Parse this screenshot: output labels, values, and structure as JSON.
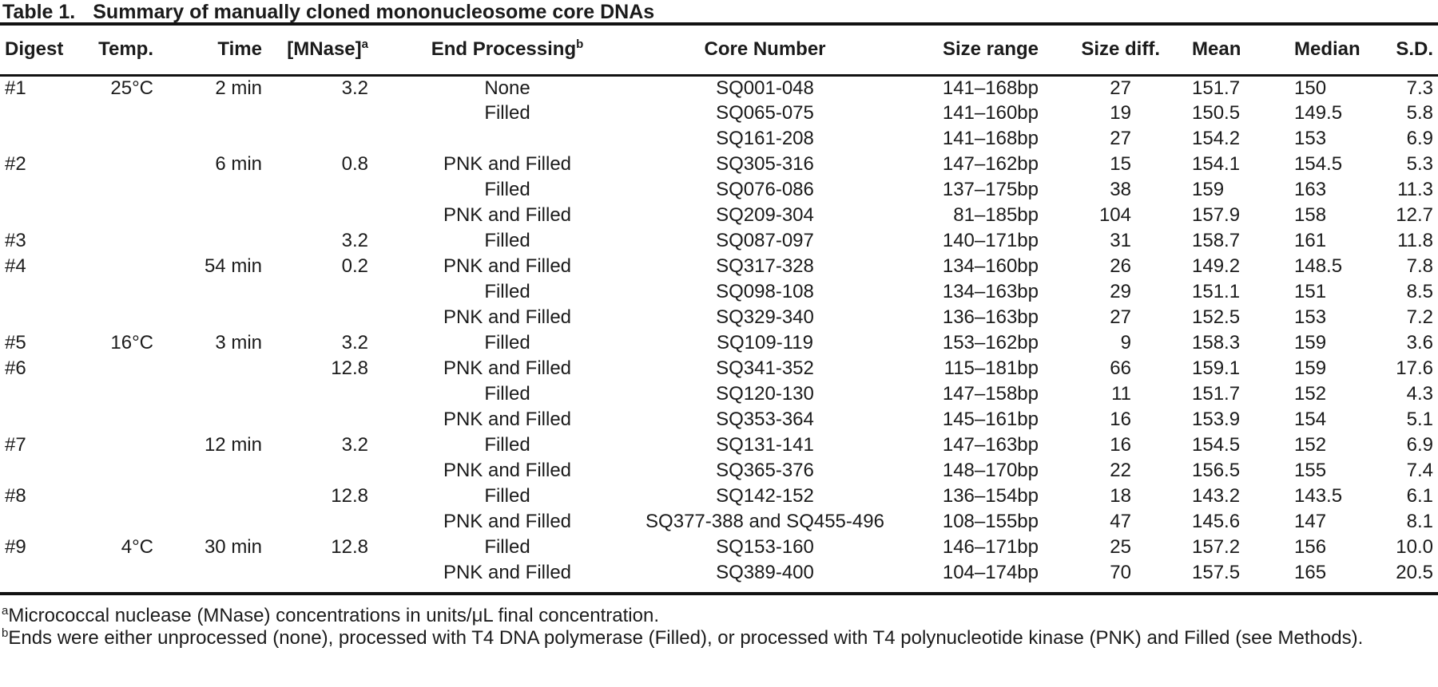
{
  "title": {
    "label": "Table 1.",
    "caption": "Summary of manually cloned mononucleosome core DNAs"
  },
  "table": {
    "columns": [
      {
        "label": "Digest"
      },
      {
        "label": "Temp."
      },
      {
        "label": "Time"
      },
      {
        "label": "[MNase]",
        "sup": "a"
      },
      {
        "label": "End Processing",
        "sup": "b"
      },
      {
        "label": "Core Number"
      },
      {
        "label": "Size range"
      },
      {
        "label": "Size diff."
      },
      {
        "label": "Mean"
      },
      {
        "label": "Median"
      },
      {
        "label": "S.D."
      }
    ],
    "rows": [
      [
        "#1",
        "25°C",
        "2 min",
        "3.2",
        "None",
        "SQ001-048",
        "141–168bp",
        "27",
        "151.7",
        "150",
        "7.3"
      ],
      [
        "",
        "",
        "",
        "",
        "Filled",
        "SQ065-075",
        "141–160bp",
        "19",
        "150.5",
        "149.5",
        "5.8"
      ],
      [
        "",
        "",
        "",
        "",
        "",
        "SQ161-208",
        "141–168bp",
        "27",
        "154.2",
        "153",
        "6.9"
      ],
      [
        "#2",
        "",
        "6 min",
        "0.8",
        "PNK and Filled",
        "SQ305-316",
        "147–162bp",
        "15",
        "154.1",
        "154.5",
        "5.3"
      ],
      [
        "",
        "",
        "",
        "",
        "Filled",
        "SQ076-086",
        "137–175bp",
        "38",
        "159",
        "163",
        "11.3"
      ],
      [
        "",
        "",
        "",
        "",
        "PNK and Filled",
        "SQ209-304",
        "81–185bp",
        "104",
        "157.9",
        "158",
        "12.7"
      ],
      [
        "#3",
        "",
        "",
        "3.2",
        "Filled",
        "SQ087-097",
        "140–171bp",
        "31",
        "158.7",
        "161",
        "11.8"
      ],
      [
        "#4",
        "",
        "54 min",
        "0.2",
        "PNK and Filled",
        "SQ317-328",
        "134–160bp",
        "26",
        "149.2",
        "148.5",
        "7.8"
      ],
      [
        "",
        "",
        "",
        "",
        "Filled",
        "SQ098-108",
        "134–163bp",
        "29",
        "151.1",
        "151",
        "8.5"
      ],
      [
        "",
        "",
        "",
        "",
        "PNK and Filled",
        "SQ329-340",
        "136–163bp",
        "27",
        "152.5",
        "153",
        "7.2"
      ],
      [
        "#5",
        "16°C",
        "3 min",
        "3.2",
        "Filled",
        "SQ109-119",
        "153–162bp",
        "9",
        "158.3",
        "159",
        "3.6"
      ],
      [
        "#6",
        "",
        "",
        "12.8",
        "PNK and Filled",
        "SQ341-352",
        "115–181bp",
        "66",
        "159.1",
        "159",
        "17.6"
      ],
      [
        "",
        "",
        "",
        "",
        "Filled",
        "SQ120-130",
        "147–158bp",
        "11",
        "151.7",
        "152",
        "4.3"
      ],
      [
        "",
        "",
        "",
        "",
        "PNK and Filled",
        "SQ353-364",
        "145–161bp",
        "16",
        "153.9",
        "154",
        "5.1"
      ],
      [
        "#7",
        "",
        "12 min",
        "3.2",
        "Filled",
        "SQ131-141",
        "147–163bp",
        "16",
        "154.5",
        "152",
        "6.9"
      ],
      [
        "",
        "",
        "",
        "",
        "PNK and Filled",
        "SQ365-376",
        "148–170bp",
        "22",
        "156.5",
        "155",
        "7.4"
      ],
      [
        "#8",
        "",
        "",
        "12.8",
        "Filled",
        "SQ142-152",
        "136–154bp",
        "18",
        "143.2",
        "143.5",
        "6.1"
      ],
      [
        "",
        "",
        "",
        "",
        "PNK and Filled",
        "SQ377-388 and SQ455-496",
        "108–155bp",
        "47",
        "145.6",
        "147",
        "8.1"
      ],
      [
        "#9",
        "4°C",
        "30 min",
        "12.8",
        "Filled",
        "SQ153-160",
        "146–171bp",
        "25",
        "157.2",
        "156",
        "10.0"
      ],
      [
        "",
        "",
        "",
        "",
        "PNK and Filled",
        "SQ389-400",
        "104–174bp",
        "70",
        "157.5",
        "165",
        "20.5"
      ]
    ]
  },
  "footnotes": [
    {
      "sup": "a",
      "text": "Micrococcal nuclease (MNase) concentrations in units/μL final concentration."
    },
    {
      "sup": "b",
      "text": "Ends were either unprocessed (none), processed with T4 DNA polymerase (Filled), or processed with T4 polynucleotide kinase (PNK) and Filled (see Methods)."
    }
  ],
  "colors": {
    "text": "#1b1b1b",
    "rule": "#121212",
    "background": "#ffffff"
  }
}
